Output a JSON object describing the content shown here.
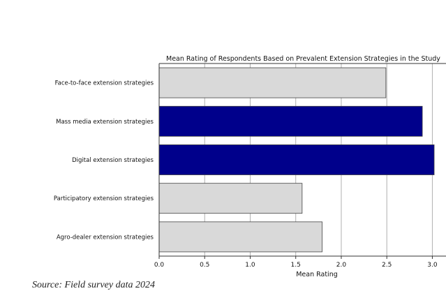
{
  "chart_data": {
    "type": "bar",
    "orientation": "horizontal",
    "title": "Mean Rating of Respondents Based on Prevalent Extension Strategies in the Study",
    "xlabel": "Mean Rating",
    "ylabel": "",
    "categories": [
      "Face-to-face extension strategies",
      "Mass media extension strategies",
      "Digital extension strategies",
      "Participatory extension strategies",
      "Agro-dealer extension strategies"
    ],
    "values": [
      2.49,
      2.89,
      3.02,
      1.57,
      1.79
    ],
    "colors": [
      "#d9d9d9",
      "#00008b",
      "#00008b",
      "#d9d9d9",
      "#d9d9d9"
    ],
    "xlim": [
      0,
      3.15
    ],
    "xticks": [
      {
        "value": 0.0,
        "label": "0.0"
      },
      {
        "value": 0.5,
        "label": "0.5"
      },
      {
        "value": 1.0,
        "label": "1.0"
      },
      {
        "value": 1.5,
        "label": "1.5"
      },
      {
        "value": 2.0,
        "label": "2.0"
      },
      {
        "value": 2.5,
        "label": "2.5"
      },
      {
        "value": 3.0,
        "label": "3.0"
      }
    ],
    "grid": "vertical"
  },
  "source_note": "Source: Field survey data 2024"
}
